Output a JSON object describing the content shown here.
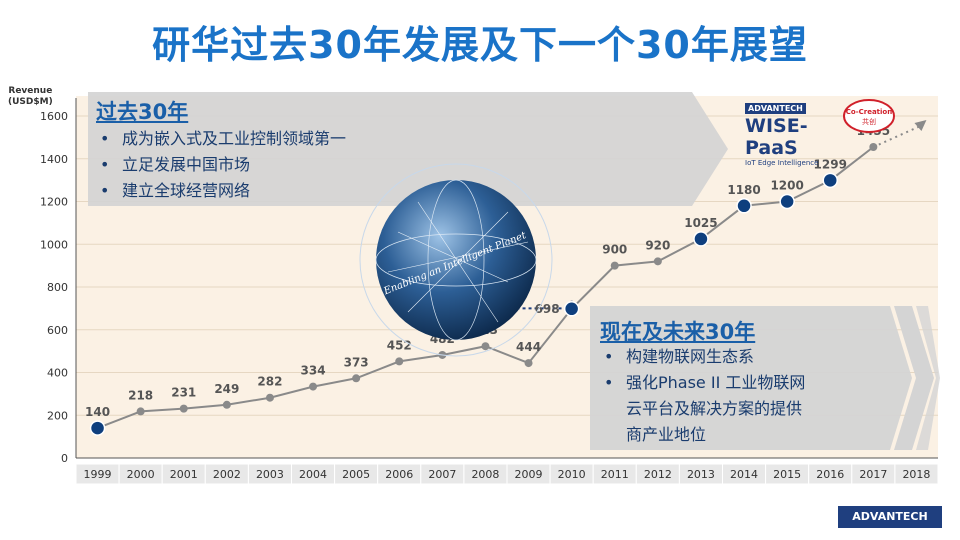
{
  "title": "研华过去30年发展及下一个30年展望",
  "y_axis_title": [
    "Revenue",
    "(USD$M)"
  ],
  "past": {
    "heading": "过去30年",
    "bullet_glyph": "•",
    "bullets": [
      "成为嵌入式及工业控制领域第一",
      "立足发展中国市场",
      "建立全球经营网络"
    ]
  },
  "future": {
    "heading": "现在及未来30年",
    "bullet_glyph": "•",
    "bullets": [
      "构建物联网生态系",
      "强化Phase II 工业物联网",
      "云平台及解决方案的提供",
      "商产业地位"
    ]
  },
  "globe_text": "Enabling an Intelligent Planet",
  "wise_paas": {
    "brand": "ADVANTECH",
    "name": "WISE-PaaS",
    "tagline": "IoT Edge Intelligence"
  },
  "co_creation": {
    "line1": "Co-Creation",
    "line2": "共创"
  },
  "footer_logo": "ADVANTECH",
  "colors": {
    "title": "#1a73c8",
    "line": "#8a8a8a",
    "point": "#8a8a8a",
    "highlight_point": "#0e3f7e",
    "label": "#555555",
    "panel": "#d4d4d4",
    "plot_bg": "#fbf1e4"
  },
  "chart_data": {
    "type": "line",
    "title": "",
    "ylabel": "Revenue (USD$M)",
    "xlabel": "",
    "categories": [
      "1999",
      "2000",
      "2001",
      "2002",
      "2003",
      "2004",
      "2005",
      "2006",
      "2007",
      "2008",
      "2009",
      "2010",
      "2011",
      "2012",
      "2013",
      "2014",
      "2015",
      "2016",
      "2017",
      "2018"
    ],
    "series": [
      {
        "values": [
          140,
          218,
          231,
          249,
          282,
          334,
          373,
          452,
          482,
          523,
          444,
          698,
          900,
          920,
          1025,
          1180,
          1200,
          1299,
          1455,
          null
        ]
      }
    ],
    "highlighted": [
      "1999",
      "2010",
      "2013",
      "2014",
      "2015",
      "2016"
    ],
    "projection": {
      "from": "2017",
      "to": "2018",
      "style": "dotted arrow"
    },
    "ylim": [
      0,
      1600
    ],
    "yticks": [
      0,
      200,
      400,
      600,
      800,
      1000,
      1200,
      1400,
      1600
    ],
    "grid": true
  }
}
